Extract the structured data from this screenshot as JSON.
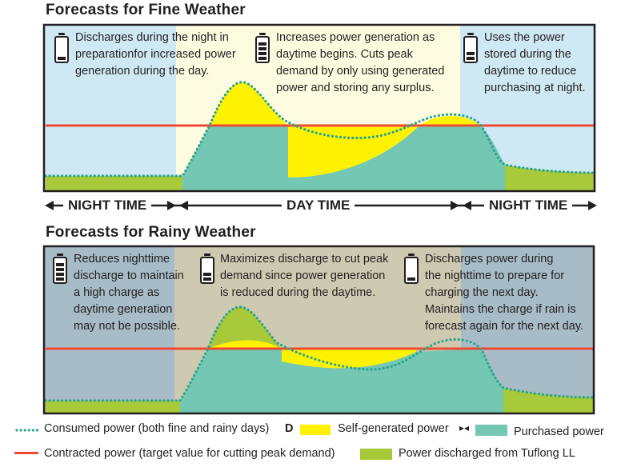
{
  "fine": {
    "title": "Forecasts for Fine Weather",
    "notes": [
      {
        "text1": "Discharges during the night in",
        "text2": "preparationfor increased power",
        "text3": "generation during the day.",
        "battery": "low"
      },
      {
        "text1": "Increases power generation as",
        "text2": "daytime begins. Cuts peak",
        "text3": "demand by only using generated",
        "text4": "power and storing any surplus.",
        "battery": "full"
      },
      {
        "text1": "Uses the power",
        "text2": "stored during the",
        "text3": "daytime to reduce",
        "text4": "purchasing at night.",
        "battery": "medium"
      }
    ]
  },
  "timeline": {
    "night_left": "NIGHT TIME",
    "day": "DAY TIME",
    "night_right": "NIGHT TIME"
  },
  "rainy": {
    "title": "Forecasts for Rainy Weather",
    "notes": [
      {
        "text1": "Reduces nighttime",
        "text2": "discharge to maintain",
        "text3": "a high charge as",
        "text4": "daytime generation",
        "text5": "may not be possible.",
        "battery": "full"
      },
      {
        "text1": "Maximizes discharge to cut peak",
        "text2": "demand since power generation",
        "text3": "is reduced during the daytime.",
        "battery": "medium"
      },
      {
        "text1": "Discharges power during",
        "text2": "the nighttime to prepare for",
        "text3": "charging the next day.",
        "text4": "Maintains the charge if rain is",
        "text5": "forecast again for the next day.",
        "battery": "low"
      }
    ]
  },
  "legend": {
    "consumed": "Consumed power (both fine and rainy days)",
    "self_generated": "Self-generated power",
    "purchased": "Purchased power",
    "contracted": "Contracted power (target value for cutting peak demand)",
    "discharged": "Power discharged from Tuflong LL",
    "sep1": "D",
    "sep2": "▸◂"
  },
  "colors": {
    "night_bg": "#cfe9f4",
    "day_bg": "#fdfbe0",
    "rain_night_bg": "#a7bcc7",
    "rain_day_bg": "#cec9b1",
    "purchased": "#73c7b3",
    "self_generated": "#fff200",
    "discharged": "#a8c93a",
    "contracted": "#ee4a32",
    "consumed": "#2aa58c"
  }
}
